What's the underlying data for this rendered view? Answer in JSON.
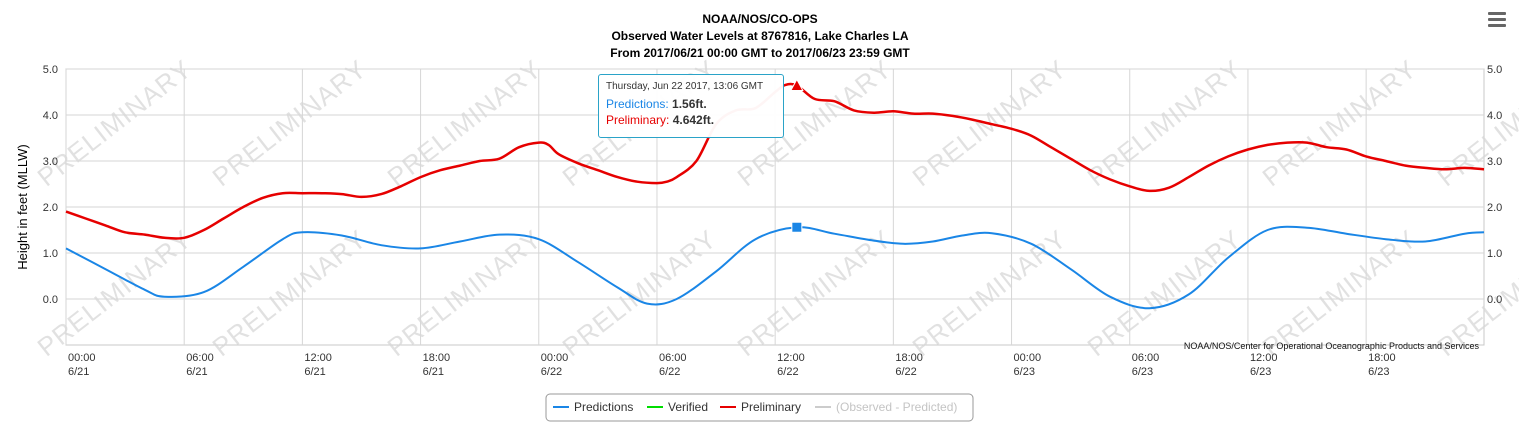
{
  "colors": {
    "predictions": "#1a86e6",
    "verified": "#00dd00",
    "preliminary": "#e60000",
    "observed_minus_predicted": "#cccccc"
  },
  "menu": {
    "icon": "hamburger-menu-icon"
  },
  "watermark": {
    "text": "PRELIMINARY"
  },
  "credits": {
    "text": "NOAA/NOS/Center for Operational Oceanographic Products and Services"
  },
  "tooltip": {
    "date": "Thursday, Jun 22 2017, 13:06 GMT",
    "predictions_label": "Predictions:",
    "predictions_value": "1.56ft.",
    "preliminary_label": "Preliminary:",
    "preliminary_value": "4.642ft."
  },
  "legend": {
    "items": [
      {
        "label": "Predictions",
        "visible": true
      },
      {
        "label": "Verified",
        "visible": true
      },
      {
        "label": "Preliminary",
        "visible": true
      },
      {
        "label": "(Observed - Predicted)",
        "visible": false
      }
    ]
  },
  "chart_data": {
    "type": "line",
    "title": "NOAA/NOS/CO-OPS",
    "subtitle_lines": [
      "Observed Water Levels at 8767816, Lake Charles LA",
      "From 2017/06/21 00:00 GMT to 2017/06/23 23:59 GMT"
    ],
    "ylabel": "Height in feet (MLLW)",
    "ylim": [
      -1.0,
      5.0
    ],
    "y_ticks": [
      "0.0",
      "1.0",
      "2.0",
      "3.0",
      "4.0",
      "5.0"
    ],
    "x_range": [
      "2017-06-21 00:00",
      "2017-06-23 23:59"
    ],
    "x_ticks": [
      {
        "time": "2017-06-21 00:00",
        "label1": "00:00",
        "label2": "6/21"
      },
      {
        "time": "2017-06-21 06:00",
        "label1": "06:00",
        "label2": "6/21"
      },
      {
        "time": "2017-06-21 12:00",
        "label1": "12:00",
        "label2": "6/21"
      },
      {
        "time": "2017-06-21 18:00",
        "label1": "18:00",
        "label2": "6/21"
      },
      {
        "time": "2017-06-22 00:00",
        "label1": "00:00",
        "label2": "6/22"
      },
      {
        "time": "2017-06-22 06:00",
        "label1": "06:00",
        "label2": "6/22"
      },
      {
        "time": "2017-06-22 12:00",
        "label1": "12:00",
        "label2": "6/22"
      },
      {
        "time": "2017-06-22 18:00",
        "label1": "18:00",
        "label2": "6/22"
      },
      {
        "time": "2017-06-23 00:00",
        "label1": "00:00",
        "label2": "6/23"
      },
      {
        "time": "2017-06-23 06:00",
        "label1": "06:00",
        "label2": "6/23"
      },
      {
        "time": "2017-06-23 12:00",
        "label1": "12:00",
        "label2": "6/23"
      },
      {
        "time": "2017-06-23 18:00",
        "label1": "18:00",
        "label2": "6/23"
      }
    ],
    "grid": true,
    "legend_position": "bottom-center",
    "series": [
      {
        "name": "Predictions",
        "x": [
          "2017-06-21 00:00",
          "2017-06-21 02:00",
          "2017-06-21 04:00",
          "2017-06-21 05:00",
          "2017-06-21 07:00",
          "2017-06-21 09:00",
          "2017-06-21 11:00",
          "2017-06-21 12:00",
          "2017-06-21 14:00",
          "2017-06-21 16:00",
          "2017-06-21 18:00",
          "2017-06-21 20:00",
          "2017-06-21 22:00",
          "2017-06-22 00:00",
          "2017-06-22 02:00",
          "2017-06-22 04:00",
          "2017-06-22 05:30",
          "2017-06-22 07:00",
          "2017-06-22 09:00",
          "2017-06-22 11:00",
          "2017-06-22 13:06",
          "2017-06-22 15:00",
          "2017-06-22 17:00",
          "2017-06-22 18:30",
          "2017-06-22 20:00",
          "2017-06-22 21:30",
          "2017-06-22 23:00",
          "2017-06-23 01:00",
          "2017-06-23 03:00",
          "2017-06-23 05:00",
          "2017-06-23 07:00",
          "2017-06-23 09:00",
          "2017-06-23 11:00",
          "2017-06-23 13:00",
          "2017-06-23 15:00",
          "2017-06-23 17:00",
          "2017-06-23 19:00",
          "2017-06-23 21:00",
          "2017-06-23 23:00",
          "2017-06-23 23:59"
        ],
        "values": [
          1.1,
          0.65,
          0.2,
          0.05,
          0.15,
          0.7,
          1.3,
          1.45,
          1.38,
          1.17,
          1.1,
          1.25,
          1.4,
          1.3,
          0.8,
          0.25,
          -0.1,
          0.0,
          0.6,
          1.3,
          1.56,
          1.42,
          1.27,
          1.2,
          1.25,
          1.38,
          1.43,
          1.2,
          0.65,
          0.05,
          -0.2,
          0.1,
          0.9,
          1.5,
          1.55,
          1.42,
          1.3,
          1.25,
          1.42,
          1.45
        ]
      },
      {
        "name": "Verified",
        "x": [],
        "values": []
      },
      {
        "name": "Preliminary",
        "x": [
          "2017-06-21 00:00",
          "2017-06-21 01:00",
          "2017-06-21 02:00",
          "2017-06-21 03:00",
          "2017-06-21 04:00",
          "2017-06-21 05:00",
          "2017-06-21 06:00",
          "2017-06-21 07:00",
          "2017-06-21 08:00",
          "2017-06-21 09:00",
          "2017-06-21 10:00",
          "2017-06-21 11:00",
          "2017-06-21 12:00",
          "2017-06-21 13:00",
          "2017-06-21 14:00",
          "2017-06-21 15:00",
          "2017-06-21 16:00",
          "2017-06-21 17:00",
          "2017-06-21 18:00",
          "2017-06-21 19:00",
          "2017-06-21 20:00",
          "2017-06-21 21:00",
          "2017-06-21 22:00",
          "2017-06-21 23:00",
          "2017-06-22 00:00",
          "2017-06-22 00:30",
          "2017-06-22 01:00",
          "2017-06-22 02:00",
          "2017-06-22 03:00",
          "2017-06-22 04:00",
          "2017-06-22 05:00",
          "2017-06-22 06:00",
          "2017-06-22 06:30",
          "2017-06-22 07:00",
          "2017-06-22 08:00",
          "2017-06-22 09:00",
          "2017-06-22 10:00",
          "2017-06-22 11:00",
          "2017-06-22 12:00",
          "2017-06-22 12:30",
          "2017-06-22 13:06",
          "2017-06-22 14:00",
          "2017-06-22 15:00",
          "2017-06-22 16:00",
          "2017-06-22 17:00",
          "2017-06-22 18:00",
          "2017-06-22 19:00",
          "2017-06-22 20:00",
          "2017-06-22 21:00",
          "2017-06-22 22:00",
          "2017-06-22 23:00",
          "2017-06-23 00:00",
          "2017-06-23 01:00",
          "2017-06-23 02:00",
          "2017-06-23 03:00",
          "2017-06-23 04:00",
          "2017-06-23 05:00",
          "2017-06-23 06:00",
          "2017-06-23 07:00",
          "2017-06-23 08:00",
          "2017-06-23 09:00",
          "2017-06-23 10:00",
          "2017-06-23 11:00",
          "2017-06-23 12:00",
          "2017-06-23 13:00",
          "2017-06-23 14:00",
          "2017-06-23 15:00",
          "2017-06-23 16:00",
          "2017-06-23 17:00",
          "2017-06-23 18:00",
          "2017-06-23 19:00",
          "2017-06-23 20:00",
          "2017-06-23 21:00",
          "2017-06-23 22:00",
          "2017-06-23 23:00",
          "2017-06-23 23:59"
        ],
        "values": [
          1.9,
          1.75,
          1.6,
          1.45,
          1.4,
          1.33,
          1.33,
          1.5,
          1.75,
          2.0,
          2.2,
          2.3,
          2.3,
          2.3,
          2.28,
          2.22,
          2.28,
          2.45,
          2.65,
          2.8,
          2.9,
          3.0,
          3.05,
          3.3,
          3.4,
          3.35,
          3.15,
          2.95,
          2.8,
          2.65,
          2.55,
          2.52,
          2.55,
          2.65,
          3.0,
          3.8,
          4.1,
          4.15,
          4.5,
          4.65,
          4.642,
          4.35,
          4.3,
          4.1,
          4.05,
          4.08,
          4.03,
          4.03,
          3.98,
          3.9,
          3.8,
          3.7,
          3.55,
          3.3,
          3.05,
          2.8,
          2.6,
          2.45,
          2.35,
          2.42,
          2.65,
          2.9,
          3.1,
          3.25,
          3.35,
          3.4,
          3.4,
          3.3,
          3.25,
          3.1,
          3.0,
          2.9,
          2.85,
          2.82,
          2.85,
          2.82
        ]
      },
      {
        "name": "(Observed - Predicted)",
        "x": [],
        "values": []
      }
    ],
    "highlight": {
      "time": "2017-06-22 13:06",
      "predictions": 1.56,
      "preliminary": 4.642
    }
  }
}
